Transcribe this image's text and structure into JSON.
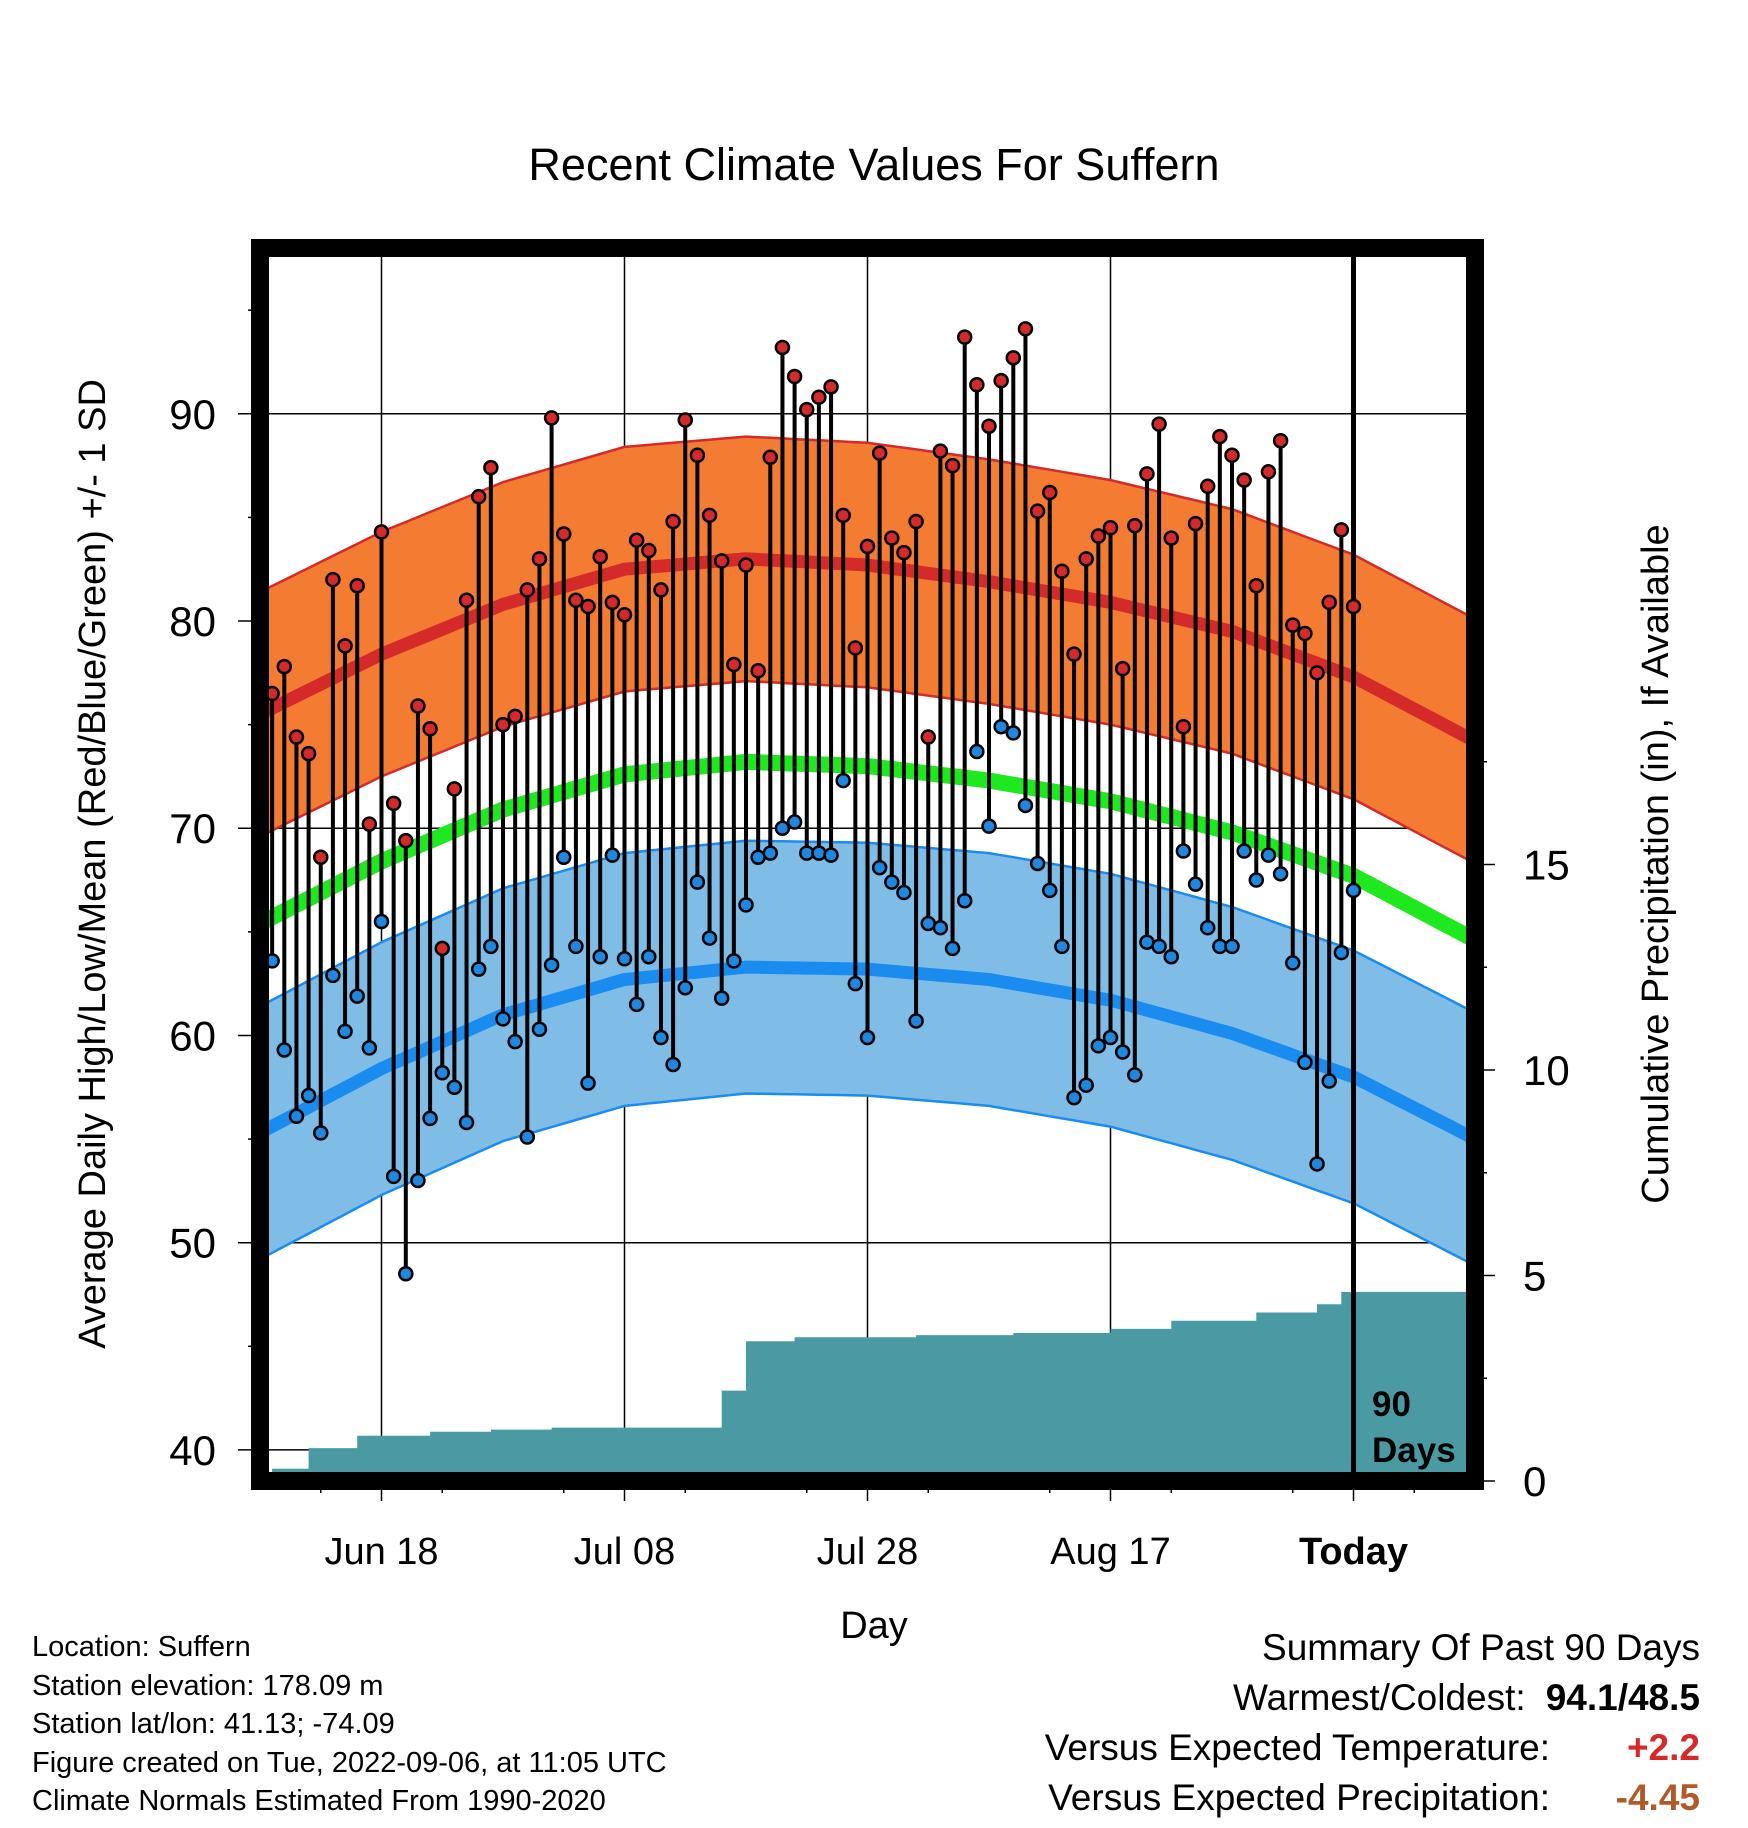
{
  "chart_data": {
    "type": "line",
    "title": "Recent Climate Values For Suffern",
    "xlabel": "Day",
    "ylabel_left": "Average Daily High/Low/Mean (Red/Blue/Green) +/- 1 SD",
    "ylabel_right": "Cumulative Precipitation (in), If Available",
    "x_tick_labels": [
      "Jun 18",
      "Jul 08",
      "Jul 28",
      "Aug 17",
      "Today"
    ],
    "x_tick_days": [
      10,
      30,
      50,
      70,
      90
    ],
    "day_range": [
      0,
      100
    ],
    "ylim": [
      38.5,
      98
    ],
    "yticks": [
      40,
      50,
      60,
      70,
      80,
      90
    ],
    "y2lim": [
      0,
      30
    ],
    "y2ticks": [
      0,
      5,
      10,
      15
    ],
    "grid": true,
    "today_label": "90\nDays",
    "normal_high": [
      [
        0,
        75.5
      ],
      [
        10,
        78.4
      ],
      [
        20,
        80.8
      ],
      [
        30,
        82.5
      ],
      [
        40,
        83.0
      ],
      [
        50,
        82.7
      ],
      [
        60,
        81.9
      ],
      [
        70,
        80.9
      ],
      [
        80,
        79.5
      ],
      [
        90,
        77.3
      ],
      [
        100,
        74.2
      ]
    ],
    "normal_high_sd": 5.9,
    "normal_low": [
      [
        0,
        55.3
      ],
      [
        10,
        58.4
      ],
      [
        20,
        61.0
      ],
      [
        30,
        62.7
      ],
      [
        40,
        63.3
      ],
      [
        50,
        63.2
      ],
      [
        60,
        62.7
      ],
      [
        70,
        61.7
      ],
      [
        80,
        60.1
      ],
      [
        90,
        58.0
      ],
      [
        100,
        55.0
      ]
    ],
    "normal_low_sd": 6.1,
    "normal_mean": [
      [
        0,
        65.4
      ],
      [
        10,
        68.4
      ],
      [
        20,
        70.9
      ],
      [
        30,
        72.6
      ],
      [
        40,
        73.2
      ],
      [
        50,
        73.0
      ],
      [
        60,
        72.3
      ],
      [
        70,
        71.3
      ],
      [
        80,
        69.8
      ],
      [
        90,
        67.7
      ],
      [
        100,
        64.6
      ]
    ],
    "series": [
      {
        "name": "High",
        "values": [
          76.5,
          77.8,
          74.4,
          73.6,
          68.6,
          82.0,
          78.8,
          81.7,
          70.2,
          84.3,
          71.2,
          69.4,
          75.9,
          74.8,
          64.2,
          71.9,
          81.0,
          86.0,
          87.4,
          75.0,
          75.4,
          81.5,
          83.0,
          89.8,
          84.2,
          81.0,
          80.7,
          83.1,
          80.9,
          80.3,
          83.9,
          83.4,
          81.5,
          84.8,
          89.7,
          88.0,
          85.1,
          82.9,
          77.9,
          82.7,
          77.6,
          87.9,
          93.2,
          91.8,
          90.2,
          90.8,
          91.3,
          85.1,
          78.7,
          83.6,
          88.1,
          84.0,
          83.3,
          84.8,
          74.4,
          88.2,
          87.5,
          93.7,
          91.4,
          89.4,
          91.6,
          92.7,
          94.1,
          85.3,
          86.2,
          82.4,
          78.4,
          83.0,
          84.1,
          84.5,
          77.7,
          84.6,
          87.1,
          89.5,
          84.0,
          74.9,
          84.7,
          86.5,
          88.9,
          88.0,
          86.8,
          81.7,
          87.2,
          88.7,
          79.8,
          79.4,
          77.5,
          80.9,
          84.4,
          80.7
        ]
      },
      {
        "name": "Low",
        "values": [
          63.6,
          59.3,
          56.1,
          57.1,
          55.3,
          62.9,
          60.2,
          61.9,
          59.4,
          65.5,
          53.2,
          48.5,
          53.0,
          56.0,
          58.2,
          57.5,
          55.8,
          63.2,
          64.3,
          60.8,
          59.7,
          55.1,
          60.3,
          63.4,
          68.6,
          64.3,
          57.7,
          63.8,
          68.7,
          63.7,
          61.5,
          63.8,
          59.9,
          58.6,
          62.3,
          67.4,
          64.7,
          61.8,
          63.6,
          66.3,
          68.6,
          68.8,
          70.0,
          70.3,
          68.8,
          68.8,
          68.7,
          72.3,
          62.5,
          59.9,
          68.1,
          67.4,
          66.9,
          60.7,
          65.4,
          65.2,
          64.2,
          66.5,
          73.7,
          70.1,
          74.9,
          74.6,
          71.1,
          68.3,
          67.0,
          64.3,
          57.0,
          57.6,
          59.5,
          59.9,
          59.2,
          58.1,
          64.5,
          64.3,
          63.8,
          68.9,
          67.3,
          65.2,
          64.3,
          64.3,
          68.9,
          67.5,
          68.7,
          67.8,
          63.5,
          58.7,
          53.8,
          57.8,
          64.0,
          67.0
        ]
      },
      {
        "name": "Precipitation",
        "values": [
          0.0,
          0.3,
          0.3,
          0.3,
          0.8,
          0.8,
          0.8,
          0.8,
          1.1,
          1.1,
          1.1,
          1.1,
          1.1,
          1.1,
          1.2,
          1.2,
          1.2,
          1.2,
          1.2,
          1.25,
          1.25,
          1.25,
          1.25,
          1.25,
          1.3,
          1.3,
          1.3,
          1.3,
          1.3,
          1.3,
          1.3,
          1.3,
          1.3,
          1.3,
          1.3,
          1.3,
          1.3,
          1.3,
          2.2,
          2.2,
          3.4,
          3.4,
          3.4,
          3.4,
          3.5,
          3.5,
          3.5,
          3.5,
          3.5,
          3.5,
          3.5,
          3.5,
          3.5,
          3.5,
          3.55,
          3.55,
          3.55,
          3.55,
          3.55,
          3.55,
          3.55,
          3.55,
          3.6,
          3.6,
          3.6,
          3.6,
          3.6,
          3.6,
          3.6,
          3.6,
          3.7,
          3.7,
          3.7,
          3.7,
          3.7,
          3.9,
          3.9,
          3.9,
          3.9,
          3.9,
          3.9,
          3.9,
          4.1,
          4.1,
          4.1,
          4.1,
          4.1,
          4.3,
          4.3,
          4.6,
          4.6,
          4.6,
          4.6,
          4.6,
          4.6,
          4.6,
          4.6,
          4.6,
          4.6,
          4.6
        ]
      }
    ],
    "colors": {
      "high_band": "#f47c32",
      "high_line": "#d42a2a",
      "high_edge": "#d42a2a",
      "low_band": "#80bde6",
      "low_line": "#1a8cf0",
      "low_edge": "#1a8cf0",
      "mean_line": "#1ee81e",
      "precip_fill": "#4a9aa3",
      "high_marker": "#d42a2a",
      "low_marker": "#1e88e0"
    }
  },
  "location_info": [
    "Location: Suffern",
    "Station elevation: 178.09 m",
    "Station lat/lon: 41.13; -74.09",
    "Figure created on Tue, 2022-09-06, at 11:05 UTC",
    "Climate Normals Estimated From 1990-2020"
  ],
  "summary": {
    "heading": "Summary Of Past 90 Days",
    "warmest_coldest_label": "Warmest/Coldest:",
    "warmest_coldest_value": "94.1/48.5",
    "temp_label": "Versus Expected Temperature:",
    "temp_value": "+2.2",
    "temp_color": "#d42a2a",
    "precip_label": "Versus Expected Precipitation:",
    "precip_value": "-4.45",
    "precip_color": "#b05a28"
  }
}
